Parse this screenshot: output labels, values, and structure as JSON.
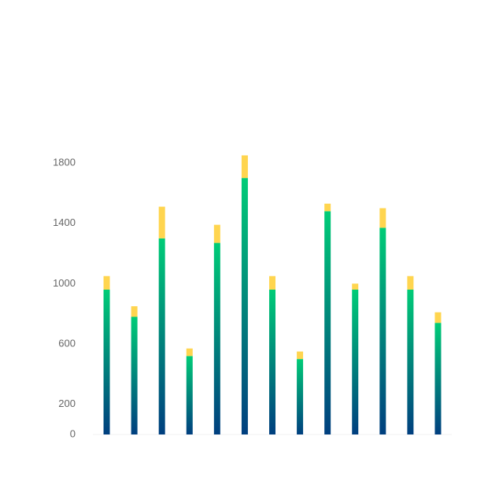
{
  "chart_data": {
    "type": "bar",
    "stacked": true,
    "categories": [
      null,
      null,
      null,
      null,
      null,
      null,
      null,
      null,
      null,
      null,
      null,
      null,
      null
    ],
    "series": [
      {
        "gradient": [
          "#00cc77",
          "#003f7f"
        ],
        "values": [
          960,
          780,
          1300,
          520,
          1270,
          1700,
          960,
          500,
          1480,
          960,
          1370,
          960,
          740
        ]
      },
      {
        "color": "#ffd54f",
        "values": [
          90,
          70,
          210,
          50,
          120,
          150,
          90,
          50,
          50,
          40,
          130,
          90,
          70
        ]
      }
    ],
    "ylim": [
      0,
      1800
    ],
    "yticks": [
      0,
      200,
      600,
      1000,
      1400,
      1800
    ],
    "grid": false
  }
}
